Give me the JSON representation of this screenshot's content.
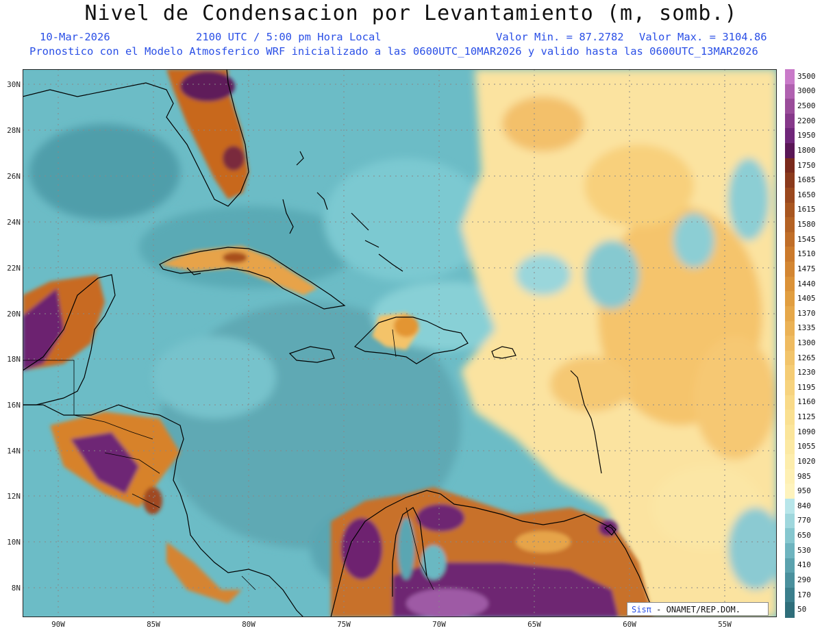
{
  "title": "Nivel de Condensacion por Levantamiento (m, somb.)",
  "header": {
    "date": "10-Mar-2026",
    "time": "2100 UTC / 5:00 pm Hora Local",
    "min_label": "Valor Min. = 87.2782",
    "max_label": "Valor Max. = 3104.86",
    "init_line": "Pronostico con el Modelo Atmosferico WRF inicializado a las 0600UTC_10MAR2026 y valido hasta las  0600UTC_13MAR2026"
  },
  "lat_labels": [
    "30N",
    "28N",
    "26N",
    "24N",
    "22N",
    "20N",
    "18N",
    "16N",
    "14N",
    "12N",
    "10N",
    "8N"
  ],
  "lon_labels": [
    "90W",
    "85W",
    "80W",
    "75W",
    "70W",
    "65W",
    "60W",
    "55W"
  ],
  "legend": {
    "labels": [
      "3500",
      "3000",
      "2500",
      "2200",
      "1950",
      "1800",
      "1750",
      "1685",
      "1650",
      "1615",
      "1580",
      "1545",
      "1510",
      "1475",
      "1440",
      "1405",
      "1370",
      "1335",
      "1300",
      "1265",
      "1230",
      "1195",
      "1160",
      "1125",
      "1090",
      "1055",
      "1020",
      "985",
      "950",
      "840",
      "770",
      "650",
      "530",
      "410",
      "290",
      "170",
      "50"
    ],
    "colors": [
      "#c97ac9",
      "#b061b0",
      "#9a4c9a",
      "#86398a",
      "#70277a",
      "#5a1756",
      "#7a2a1c",
      "#8a3a1c",
      "#9a481e",
      "#a85620",
      "#b46224",
      "#c06e28",
      "#cb7a2c",
      "#d38632",
      "#db9238",
      "#e19e40",
      "#e6a84a",
      "#ebb255",
      "#efbb60",
      "#f2c46a",
      "#f5cc74",
      "#f7d37e",
      "#f9da88",
      "#fae091",
      "#fbe59a",
      "#fce9a3",
      "#fdedac",
      "#fef0b4",
      "#fef3bd",
      "#b8e6ea",
      "#9fd7dd",
      "#86c7cf",
      "#6eb4bf",
      "#5ba2ae",
      "#4a909d",
      "#3b7f8c",
      "#2f6e7a"
    ]
  },
  "credit": {
    "brand": "Sisπ",
    "org": "- ONAMET/REP.DOM."
  },
  "map": {
    "lat_range": [
      7,
      30.5
    ],
    "lon_range": [
      -91.8,
      -52.3
    ],
    "field": "Nivel de condensacion por levantamiento"
  }
}
